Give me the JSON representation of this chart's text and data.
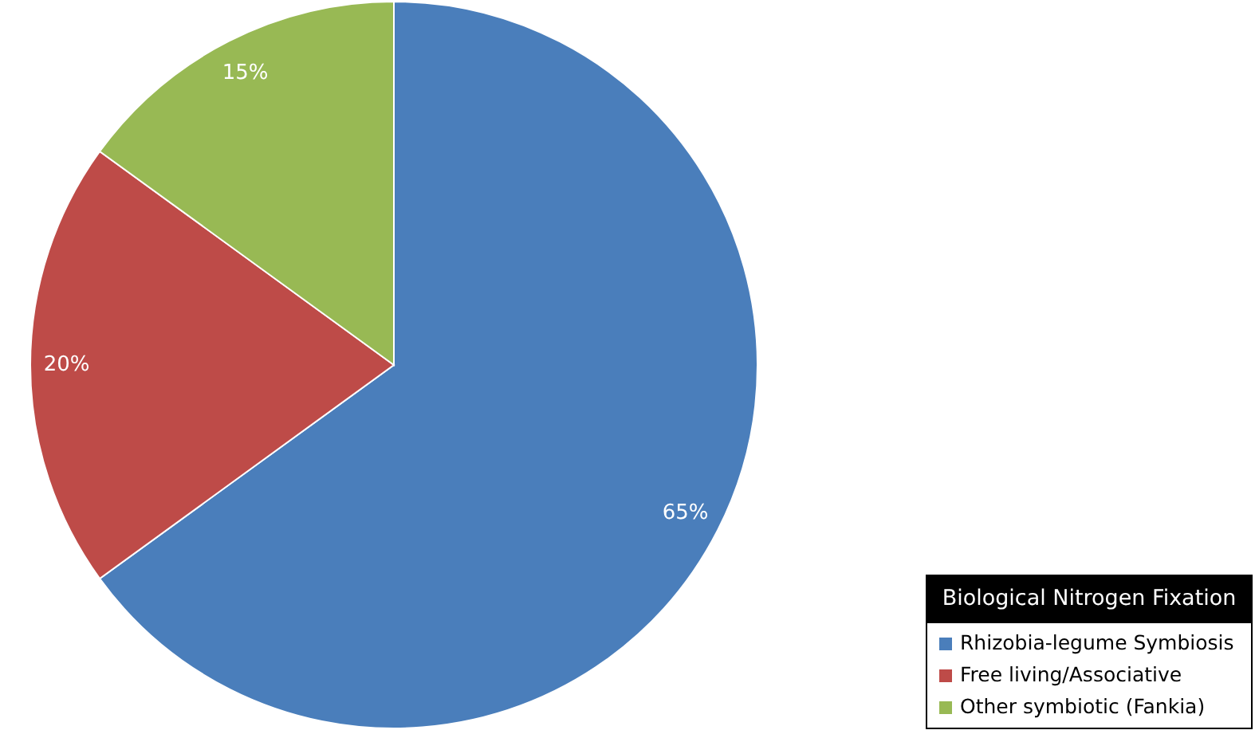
{
  "chart_data": {
    "type": "pie",
    "categories": [
      "Rhizobia-legume Symbiosis",
      "Free living/Associative",
      "Other symbiotic (Fankia)"
    ],
    "values": [
      65,
      20,
      15
    ],
    "colors": [
      "#4a7ebb",
      "#be4b48",
      "#98b954"
    ],
    "value_labels": [
      "65%",
      "20%",
      "15%"
    ],
    "legend_title": "Biological Nitrogen Fixation",
    "legend": "bottom right"
  }
}
